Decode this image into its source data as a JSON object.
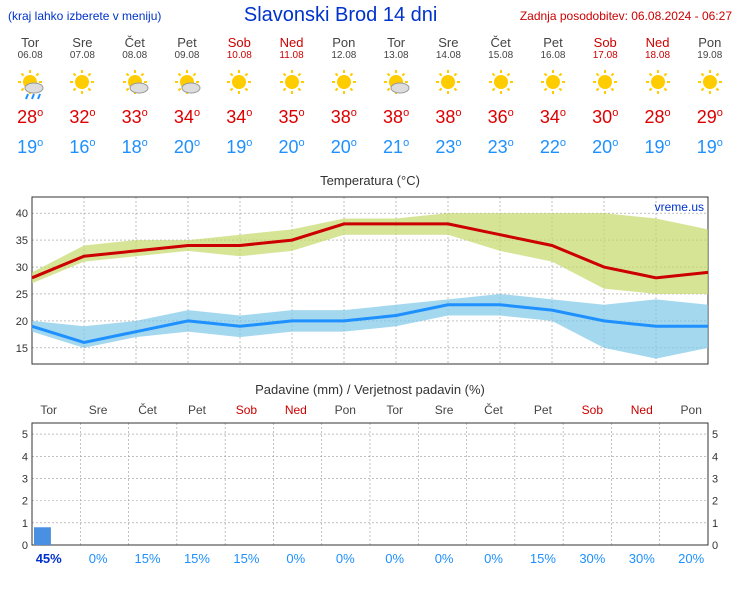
{
  "header": {
    "menu_note": "(kraj lahko izberete v meniju)",
    "title": "Slavonski Brod 14 dni",
    "update_label": "Zadnja posodobitev: 06.08.2024 - 06:27"
  },
  "days": [
    {
      "name": "Tor",
      "date": "06.08",
      "weekend": false,
      "icon": "rain-sun",
      "hi": 28,
      "lo": 19,
      "precip_pct": 45,
      "precip_mm": 0.8
    },
    {
      "name": "Sre",
      "date": "07.08",
      "weekend": false,
      "icon": "sun",
      "hi": 32,
      "lo": 16,
      "precip_pct": 0,
      "precip_mm": 0
    },
    {
      "name": "Čet",
      "date": "08.08",
      "weekend": false,
      "icon": "partly",
      "hi": 33,
      "lo": 18,
      "precip_pct": 15,
      "precip_mm": 0
    },
    {
      "name": "Pet",
      "date": "09.08",
      "weekend": false,
      "icon": "partly",
      "hi": 34,
      "lo": 20,
      "precip_pct": 15,
      "precip_mm": 0
    },
    {
      "name": "Sob",
      "date": "10.08",
      "weekend": true,
      "icon": "sun",
      "hi": 34,
      "lo": 19,
      "precip_pct": 15,
      "precip_mm": 0
    },
    {
      "name": "Ned",
      "date": "11.08",
      "weekend": true,
      "icon": "sun",
      "hi": 35,
      "lo": 20,
      "precip_pct": 0,
      "precip_mm": 0
    },
    {
      "name": "Pon",
      "date": "12.08",
      "weekend": false,
      "icon": "sun",
      "hi": 38,
      "lo": 20,
      "precip_pct": 0,
      "precip_mm": 0
    },
    {
      "name": "Tor",
      "date": "13.08",
      "weekend": false,
      "icon": "partly",
      "hi": 38,
      "lo": 21,
      "precip_pct": 0,
      "precip_mm": 0
    },
    {
      "name": "Sre",
      "date": "14.08",
      "weekend": false,
      "icon": "sun",
      "hi": 38,
      "lo": 23,
      "precip_pct": 0,
      "precip_mm": 0
    },
    {
      "name": "Čet",
      "date": "15.08",
      "weekend": false,
      "icon": "sun",
      "hi": 36,
      "lo": 23,
      "precip_pct": 0,
      "precip_mm": 0
    },
    {
      "name": "Pet",
      "date": "16.08",
      "weekend": false,
      "icon": "sun",
      "hi": 34,
      "lo": 22,
      "precip_pct": 15,
      "precip_mm": 0
    },
    {
      "name": "Sob",
      "date": "17.08",
      "weekend": true,
      "icon": "sun",
      "hi": 30,
      "lo": 20,
      "precip_pct": 30,
      "precip_mm": 0
    },
    {
      "name": "Ned",
      "date": "18.08",
      "weekend": true,
      "icon": "sun",
      "hi": 28,
      "lo": 19,
      "precip_pct": 30,
      "precip_mm": 0
    },
    {
      "name": "Pon",
      "date": "19.08",
      "weekend": false,
      "icon": "sun",
      "hi": 29,
      "lo": 19,
      "precip_pct": 20,
      "precip_mm": 0
    }
  ],
  "temp_chart": {
    "title": "Temperatura (°C)",
    "watermark": "vreme.us",
    "ylim": [
      12,
      43
    ],
    "yticks": [
      15,
      20,
      25,
      30,
      35,
      40
    ],
    "hi_band_upper": [
      29,
      34,
      35,
      35,
      36,
      37,
      39,
      39,
      40,
      40,
      40,
      40,
      39,
      37
    ],
    "hi_band_lower": [
      27,
      31,
      32,
      33,
      32,
      33,
      36,
      36,
      36,
      33,
      31,
      26,
      25,
      25
    ],
    "lo_band_upper": [
      20,
      19,
      20,
      22,
      21,
      22,
      22,
      23,
      24,
      25,
      24,
      23,
      24,
      23
    ],
    "lo_band_lower": [
      18,
      15,
      17,
      18,
      17,
      18,
      18,
      19,
      21,
      21,
      20,
      15,
      13,
      15
    ],
    "grid_color": "#999999",
    "grid_dash": "2,2",
    "hi_color": "#cc0000",
    "hi_band_fill": "#c5d96a",
    "lo_color": "#1e90ff",
    "lo_band_fill": "#7ec8e8",
    "line_width": 3
  },
  "precip_chart": {
    "title": "Padavine (mm) / Verjetnost padavin (%)",
    "ylim": [
      0,
      5.5
    ],
    "yticks": [
      0,
      1,
      2,
      3,
      4,
      5
    ],
    "bar_color": "#4a90e2",
    "grid_color": "#999999",
    "grid_dash": "2,2"
  }
}
